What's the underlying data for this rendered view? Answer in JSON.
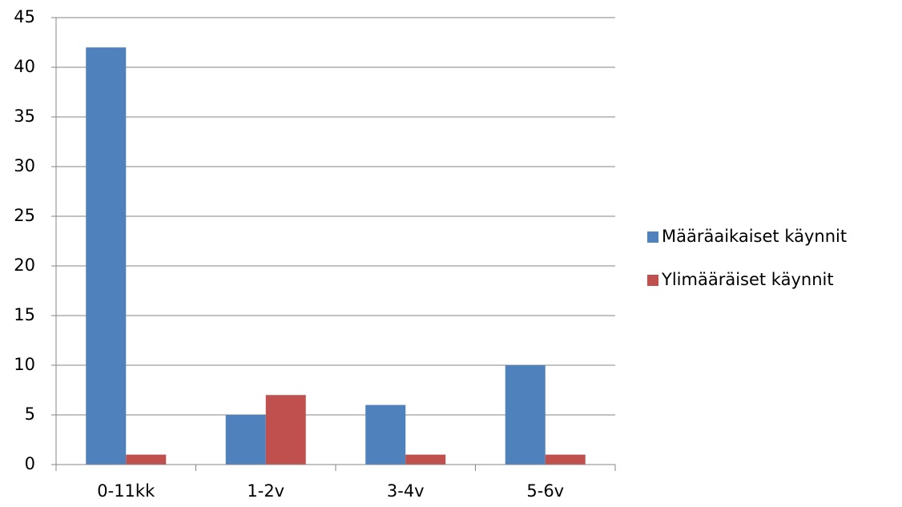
{
  "chart_data": {
    "type": "bar",
    "categories": [
      "0-11kk",
      "1-2v",
      "3-4v",
      "5-6v"
    ],
    "series": [
      {
        "name": "Määräaikaiset käynnit",
        "color": "#4f81bd",
        "values": [
          42,
          5,
          6,
          10
        ]
      },
      {
        "name": "Ylimääräiset käynnit",
        "color": "#c0504d",
        "values": [
          1,
          7,
          1,
          1
        ]
      }
    ],
    "ylim": [
      0,
      45
    ],
    "yticks": [
      0,
      5,
      10,
      15,
      20,
      25,
      30,
      35,
      40,
      45
    ],
    "grid": true,
    "legend": "right"
  }
}
